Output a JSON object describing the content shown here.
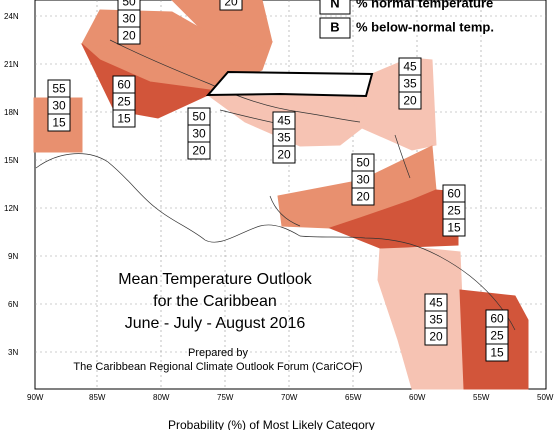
{
  "legend": [
    {
      "key": "N",
      "text": "% normal temperature"
    },
    {
      "key": "B",
      "text": "% below-normal temp."
    }
  ],
  "title_lines": [
    "Mean Temperature Outlook",
    "for the Caribbean",
    "June - July - August 2016"
  ],
  "prepared_lines": [
    "Prepared by",
    "The Caribbean Regional Climate Outlook Forum (CariCOF)"
  ],
  "footer": "Probability (%) of Most Likely Category",
  "lat_labels": [
    "24N",
    "21N",
    "18N",
    "15N",
    "12N",
    "9N",
    "6N",
    "3N"
  ],
  "lon_labels": [
    "90W",
    "85W",
    "80W",
    "75W",
    "70W",
    "65W",
    "60W",
    "55W",
    "50W"
  ],
  "colors": {
    "light": "#f6c3b3",
    "medium": "#e8906f",
    "dark": "#d2553a",
    "border": "#000000"
  },
  "probability_boxes": [
    {
      "id": "top-center",
      "values": [
        50,
        30,
        20
      ]
    },
    {
      "id": "top-right",
      "values": [
        20
      ]
    },
    {
      "id": "west-isolated",
      "values": [
        55,
        30,
        15
      ]
    },
    {
      "id": "cuba-west",
      "values": [
        60,
        25,
        15
      ]
    },
    {
      "id": "jamaica",
      "values": [
        50,
        30,
        20
      ]
    },
    {
      "id": "hispaniola",
      "values": [
        45,
        35,
        20
      ]
    },
    {
      "id": "lesser-antilles-north",
      "values": [
        45,
        35,
        20
      ]
    },
    {
      "id": "central-caribbean",
      "values": [
        50,
        30,
        20
      ]
    },
    {
      "id": "southern-lesser-antilles",
      "values": [
        60,
        25,
        15
      ]
    },
    {
      "id": "guianas-west",
      "values": [
        45,
        35,
        20
      ]
    },
    {
      "id": "guianas-east",
      "values": [
        60,
        25,
        15
      ]
    }
  ]
}
